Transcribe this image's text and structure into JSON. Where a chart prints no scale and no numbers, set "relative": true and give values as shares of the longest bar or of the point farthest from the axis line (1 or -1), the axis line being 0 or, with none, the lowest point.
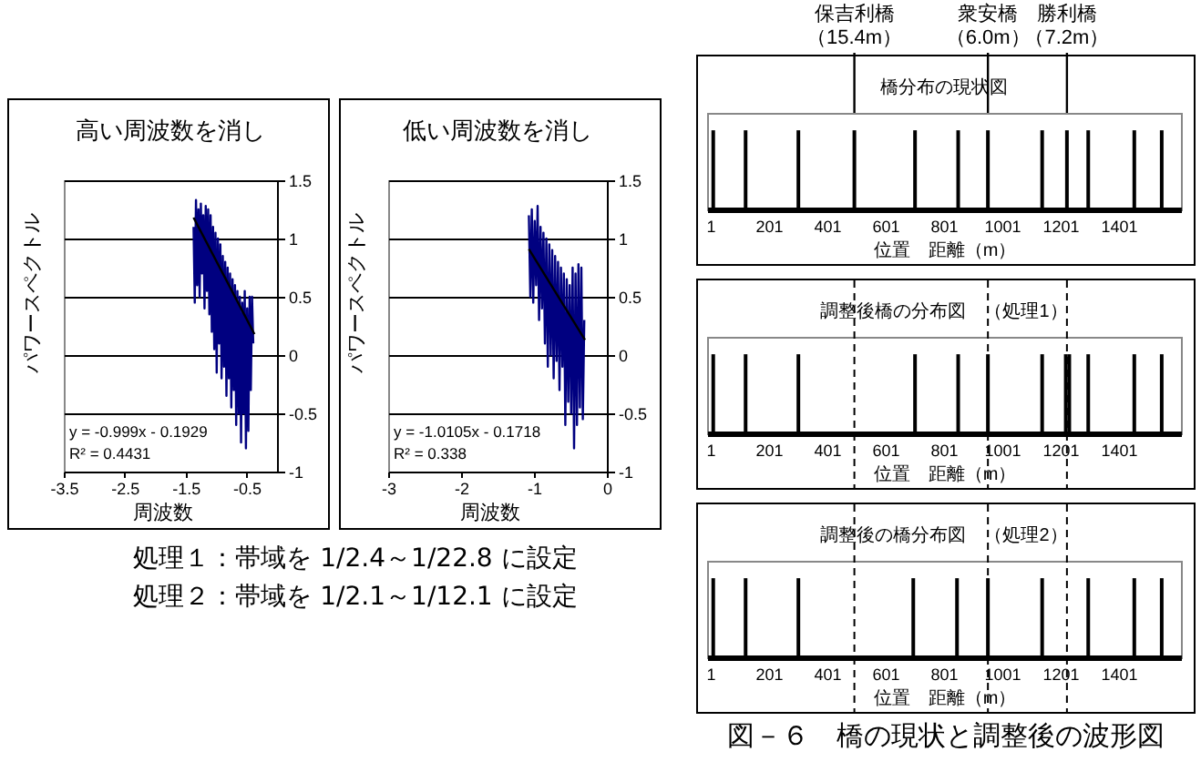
{
  "chart_data": [
    {
      "type": "line",
      "title": "高い周波数を消し",
      "xlabel": "周波数",
      "ylabel": "パワースペクトル",
      "xlim": [
        -3.5,
        0
      ],
      "xticks": [
        -3.5,
        -2.5,
        -1.5,
        -0.5
      ],
      "ylim": [
        -1,
        1.5
      ],
      "yticks": [
        -1,
        -0.5,
        0,
        0.5,
        1,
        1.5
      ],
      "grid": "y",
      "annotations": [
        "y = -0.999x - 0.1929",
        "R² = 0.4431"
      ],
      "series": [
        {
          "color": "#000080",
          "x": [
            -1.37,
            -1.35,
            -1.33,
            -1.31,
            -1.29,
            -1.27,
            -1.25,
            -1.23,
            -1.21,
            -1.19,
            -1.17,
            -1.15,
            -1.13,
            -1.11,
            -1.09,
            -1.07,
            -1.05,
            -1.03,
            -1.01,
            -0.99,
            -0.97,
            -0.95,
            -0.93,
            -0.91,
            -0.89,
            -0.87,
            -0.85,
            -0.83,
            -0.81,
            -0.79,
            -0.77,
            -0.75,
            -0.73,
            -0.71,
            -0.69,
            -0.67,
            -0.65,
            -0.63,
            -0.61,
            -0.59,
            -0.57,
            -0.55,
            -0.53,
            -0.51,
            -0.49,
            -0.47,
            -0.45,
            -0.43,
            -0.41,
            -0.39
          ],
          "values": [
            1.1,
            0.45,
            1.33,
            0.6,
            1.25,
            0.5,
            1.3,
            0.7,
            1.2,
            0.4,
            1.28,
            0.55,
            1.25,
            0.35,
            1.2,
            0.2,
            1.1,
            0.05,
            1.05,
            -0.15,
            1.0,
            0.1,
            0.95,
            -0.2,
            0.85,
            -0.1,
            0.8,
            -0.35,
            0.75,
            -0.2,
            0.7,
            -0.45,
            0.65,
            -0.3,
            0.6,
            -0.6,
            0.55,
            -0.5,
            0.5,
            -0.75,
            0.45,
            -0.5,
            0.55,
            -0.8,
            0.4,
            -0.65,
            0.5,
            -0.3,
            0.5,
            0.1
          ]
        },
        {
          "color": "#000000",
          "x": [
            -1.37,
            -0.37
          ],
          "values": [
            1.18,
            0.18
          ]
        }
      ]
    },
    {
      "type": "line",
      "title": "低い周波数を消し",
      "xlabel": "周波数",
      "ylabel": "パワースペクトル",
      "xlim": [
        -3,
        0
      ],
      "xticks": [
        -3,
        -2,
        -1,
        0
      ],
      "ylim": [
        -1,
        1.5
      ],
      "yticks": [
        -1,
        -0.5,
        0,
        0.5,
        1,
        1.5
      ],
      "grid": "y",
      "annotations": [
        "y = -1.0105x - 0.1718",
        "R² = 0.338"
      ],
      "series": [
        {
          "color": "#000080",
          "x": [
            -1.07,
            -1.05,
            -1.03,
            -1.01,
            -0.99,
            -0.97,
            -0.95,
            -0.93,
            -0.91,
            -0.89,
            -0.87,
            -0.85,
            -0.83,
            -0.81,
            -0.79,
            -0.77,
            -0.75,
            -0.73,
            -0.71,
            -0.69,
            -0.67,
            -0.65,
            -0.63,
            -0.61,
            -0.59,
            -0.57,
            -0.55,
            -0.53,
            -0.51,
            -0.49,
            -0.47,
            -0.45,
            -0.43,
            -0.41,
            -0.39,
            -0.37,
            -0.35,
            -0.33,
            -0.31
          ],
          "values": [
            1.2,
            0.5,
            1.25,
            0.45,
            1.15,
            0.6,
            1.28,
            0.3,
            1.1,
            0.4,
            1.05,
            0.1,
            1.0,
            -0.1,
            0.95,
            0.0,
            0.9,
            -0.2,
            0.85,
            -0.05,
            0.8,
            -0.3,
            0.75,
            -0.1,
            0.7,
            -0.6,
            0.65,
            -0.4,
            0.6,
            -0.5,
            0.75,
            -0.8,
            0.7,
            -0.6,
            0.78,
            -0.45,
            0.75,
            -0.55,
            0.3
          ]
        },
        {
          "color": "#000000",
          "x": [
            -1.07,
            -0.3
          ],
          "values": [
            0.91,
            0.13
          ]
        }
      ]
    },
    {
      "type": "other",
      "annotations": [
        "処理１：帯域を 1/2.4～1/22.8 に設定",
        "処理２：帯域を 1/2.1～1/12.1 に設定"
      ]
    },
    {
      "type": "bar",
      "title": "橋分布の現状図",
      "xlabel": "位置　距離（m）",
      "relative": true,
      "color": "#000000",
      "xlim": [
        -10,
        1615
      ],
      "xticks": [
        1,
        201,
        401,
        601,
        801,
        1001,
        1201,
        1401
      ],
      "x": [
        11,
        122,
        303,
        495,
        703,
        851,
        953,
        1139,
        1224,
        1297,
        1455,
        1549
      ],
      "values": [
        1,
        1,
        1,
        1,
        1,
        1,
        1,
        1,
        1,
        1,
        1,
        1
      ],
      "annotations": [
        {
          "text": "保吉利橋（15.4m）",
          "x": 495
        },
        {
          "text": "衆安橋（6.0m）",
          "x": 953
        },
        {
          "text": "勝利橋（7.2m）",
          "x": 1224
        }
      ]
    },
    {
      "type": "bar",
      "title": "調整後橋の分布図　（処理1）",
      "xlabel": "位置　距離（m）",
      "relative": true,
      "color": "#000000",
      "xlim": [
        -10,
        1615
      ],
      "xticks": [
        1,
        201,
        401,
        601,
        801,
        1001,
        1201,
        1401
      ],
      "x": [
        11,
        122,
        303,
        703,
        851,
        953,
        1139,
        1220,
        1232,
        1297,
        1455,
        1549
      ],
      "values": [
        1,
        1,
        1,
        1,
        1,
        1,
        1,
        1,
        1,
        1,
        1,
        1
      ],
      "ref_lines": [
        {
          "axis": "x",
          "value": 495,
          "line_style": "dashed"
        },
        {
          "axis": "x",
          "value": 953,
          "line_style": "dashed"
        },
        {
          "axis": "x",
          "value": 1224,
          "line_style": "dashed"
        }
      ]
    },
    {
      "type": "bar",
      "title": "調整後の橋分布図　（処理2）",
      "xlabel": "位置　距離（m）",
      "relative": true,
      "color": "#000000",
      "xlim": [
        -10,
        1615
      ],
      "xticks": [
        1,
        201,
        401,
        601,
        801,
        1001,
        1201,
        1401
      ],
      "x": [
        11,
        122,
        303,
        697,
        847,
        953,
        1139,
        1297,
        1455,
        1549
      ],
      "values": [
        1,
        1,
        1,
        1,
        1,
        1,
        1,
        1,
        1,
        1
      ],
      "ref_lines": [
        {
          "axis": "x",
          "value": 495,
          "line_style": "dashed"
        },
        {
          "axis": "x",
          "value": 953,
          "line_style": "dashed"
        },
        {
          "axis": "x",
          "value": 1224,
          "line_style": "dashed"
        }
      ],
      "annotations": [
        "図－６　橋の現状と調整後の波形図"
      ]
    }
  ]
}
